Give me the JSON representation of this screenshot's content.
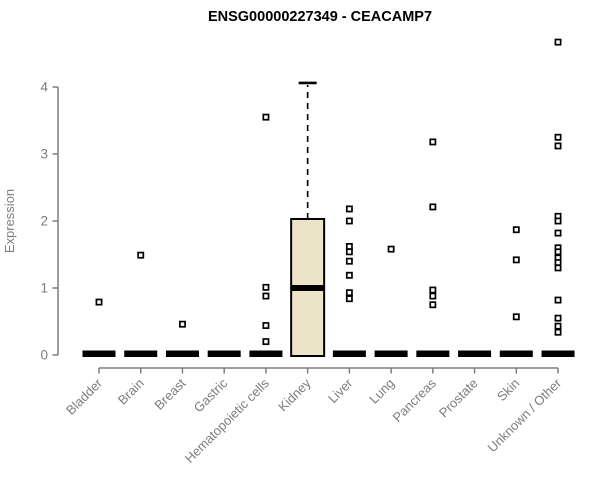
{
  "title": "ENSG00000227349 - CEACAMP7",
  "chart_data": {
    "type": "boxplot",
    "title": "ENSG00000227349 - CEACAMP7",
    "xlabel": "",
    "ylabel": "Expression",
    "yticks": [
      0,
      1,
      2,
      3,
      4
    ],
    "ytick_labels": [
      "0",
      "1",
      "2",
      "3",
      "4"
    ],
    "ylim": [
      -0.1,
      4.75
    ],
    "grid": false,
    "legend": "none",
    "categories": [
      "Bladder",
      "Brain",
      "Breast",
      "Gastric",
      "Hematopoietic cells",
      "Kidney",
      "Liver",
      "Lung",
      "Pancreas",
      "Prostate",
      "Skin",
      "Unknown / Other"
    ],
    "boxes": [
      {
        "category": "Bladder",
        "q1": 0,
        "median": 0,
        "q3": 0,
        "whisker_low": 0,
        "whisker_high": 0,
        "outliers": [
          0.79
        ]
      },
      {
        "category": "Brain",
        "q1": 0,
        "median": 0,
        "q3": 0,
        "whisker_low": 0,
        "whisker_high": 0,
        "outliers": [
          1.49
        ]
      },
      {
        "category": "Breast",
        "q1": 0,
        "median": 0,
        "q3": 0,
        "whisker_low": 0,
        "whisker_high": 0,
        "outliers": [
          0.46
        ]
      },
      {
        "category": "Gastric",
        "q1": 0,
        "median": 0,
        "q3": 0,
        "whisker_low": 0,
        "whisker_high": 0,
        "outliers": []
      },
      {
        "category": "Hematopoietic cells",
        "q1": 0,
        "median": 0,
        "q3": 0,
        "whisker_low": 0,
        "whisker_high": 0,
        "outliers": [
          3.55,
          1.01,
          0.88,
          0.44,
          0.2
        ]
      },
      {
        "category": "Kidney",
        "q1": 0,
        "median": 1.0,
        "q3": 2.03,
        "whisker_low": 0,
        "whisker_high": 4.06,
        "outliers": []
      },
      {
        "category": "Liver",
        "q1": 0,
        "median": 0,
        "q3": 0,
        "whisker_low": 0,
        "whisker_high": 0,
        "outliers": [
          2.18,
          2.0,
          1.62,
          1.54,
          1.4,
          1.19,
          0.93,
          0.84
        ]
      },
      {
        "category": "Lung",
        "q1": 0,
        "median": 0,
        "q3": 0,
        "whisker_low": 0,
        "whisker_high": 0,
        "outliers": [
          1.58
        ]
      },
      {
        "category": "Pancreas",
        "q1": 0,
        "median": 0,
        "q3": 0,
        "whisker_low": 0,
        "whisker_high": 0,
        "outliers": [
          3.18,
          2.21,
          0.97,
          0.88,
          0.75
        ]
      },
      {
        "category": "Prostate",
        "q1": 0,
        "median": 0,
        "q3": 0,
        "whisker_low": 0,
        "whisker_high": 0,
        "outliers": []
      },
      {
        "category": "Skin",
        "q1": 0,
        "median": 0,
        "q3": 0,
        "whisker_low": 0,
        "whisker_high": 0,
        "outliers": [
          1.87,
          1.42,
          0.57
        ]
      },
      {
        "category": "Unknown / Other",
        "q1": 0,
        "median": 0,
        "q3": 0,
        "whisker_low": 0,
        "whisker_high": 0,
        "outliers": [
          4.67,
          3.25,
          3.12,
          2.07,
          2.0,
          1.82,
          1.6,
          1.54,
          1.45,
          1.38,
          1.3,
          0.82,
          0.55,
          0.43,
          0.34
        ]
      }
    ],
    "colors": {
      "box_fill": "#ebe4c9",
      "data_stroke": "#000000",
      "axis": "#7d7d7d",
      "title": "#000000",
      "background": "#ffffff"
    }
  }
}
